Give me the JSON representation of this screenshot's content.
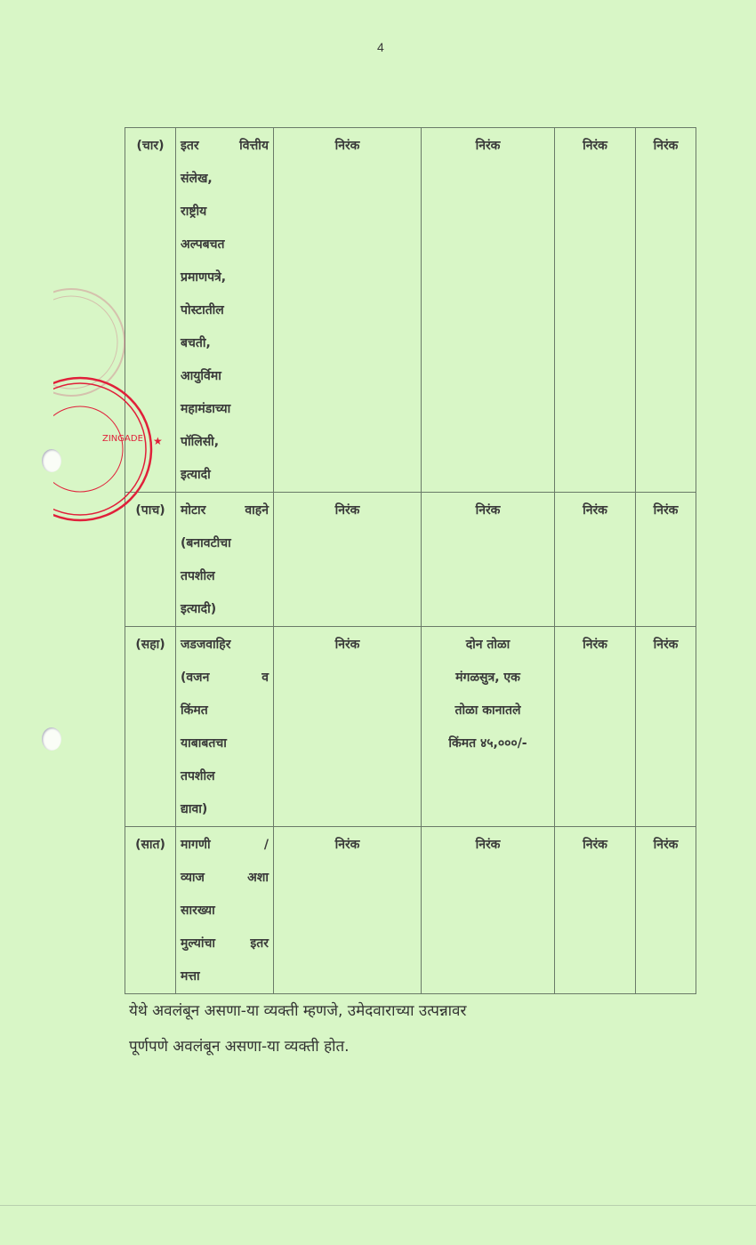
{
  "page_number": "4",
  "table": {
    "rows": [
      {
        "num": "(चार)",
        "desc": [
          "इतर वित्तीय",
          "संलेख,",
          "राष्ट्रीय",
          "अल्पबचत",
          "प्रमाणपत्रे,",
          "पोस्टातील",
          "बचती,",
          "आयुर्विमा",
          "महामंडाच्या",
          "पॉलिसी,",
          "इत्यादी"
        ],
        "c1": [
          "निरंक"
        ],
        "c2": [
          "निरंक"
        ],
        "c3": [
          "निरंक"
        ],
        "c4": [
          "निरंक"
        ]
      },
      {
        "num": "(पाच)",
        "desc": [
          "मोटार वाहने",
          "(बनावटीचा",
          "तपशील",
          "इत्यादी)"
        ],
        "c1": [
          "निरंक"
        ],
        "c2": [
          "निरंक"
        ],
        "c3": [
          "निरंक"
        ],
        "c4": [
          "निरंक"
        ]
      },
      {
        "num": "(सहा)",
        "desc": [
          "जडजवाहिर",
          "(वजन व",
          "किंमत",
          "याबाबतचा",
          "तपशील",
          "द्यावा)"
        ],
        "c1": [
          "निरंक"
        ],
        "c2": [
          "दोन तोळा",
          "मंगळसुत्र, एक",
          "तोळा कानातले",
          "किंमत ४५,०००/-"
        ],
        "c3": [
          "निरंक"
        ],
        "c4": [
          "निरंक"
        ]
      },
      {
        "num": "(सात)",
        "desc": [
          "मागणी /",
          "व्याज अशा",
          "सारख्या",
          "मुल्यांचा इतर",
          "मत्ता"
        ],
        "c1": [
          "निरंक"
        ],
        "c2": [
          "निरंक"
        ],
        "c3": [
          "निरंक"
        ],
        "c4": [
          "निरंक"
        ]
      }
    ]
  },
  "footer_note": [
    "येथे अवलंबून असणा-या व्यक्ती म्हणजे, उमेदवाराच्या उत्पन्नावर",
    "पूर्णपणे अवलंबून असणा-या व्यक्ती होत."
  ],
  "stamp": {
    "color": "#e0203a",
    "text": "ZINGADE"
  }
}
